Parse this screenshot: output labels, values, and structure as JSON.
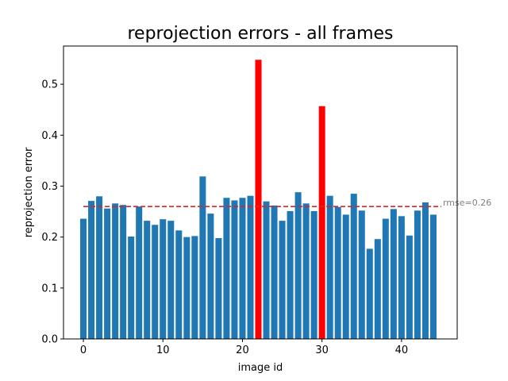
{
  "chart_data": {
    "type": "bar",
    "title": "reprojection errors - all frames",
    "xlabel": "image id",
    "ylabel": "reprojection error",
    "x": [
      0,
      1,
      2,
      3,
      4,
      5,
      6,
      7,
      8,
      9,
      10,
      11,
      12,
      13,
      14,
      15,
      16,
      17,
      18,
      19,
      20,
      21,
      22,
      23,
      24,
      25,
      26,
      27,
      28,
      29,
      30,
      31,
      32,
      33,
      34,
      35,
      36,
      37,
      38,
      39,
      40,
      41,
      42,
      43,
      44
    ],
    "values": [
      0.236,
      0.271,
      0.28,
      0.256,
      0.266,
      0.263,
      0.201,
      0.26,
      0.232,
      0.224,
      0.235,
      0.232,
      0.213,
      0.2,
      0.202,
      0.319,
      0.246,
      0.198,
      0.277,
      0.272,
      0.277,
      0.281,
      0.548,
      0.27,
      0.262,
      0.232,
      0.251,
      0.288,
      0.266,
      0.251,
      0.457,
      0.281,
      0.259,
      0.244,
      0.285,
      0.252,
      0.177,
      0.196,
      0.236,
      0.255,
      0.241,
      0.203,
      0.252,
      0.268,
      0.244
    ],
    "highlighted": [
      22,
      30
    ],
    "colors": {
      "bar": "#1f77b4",
      "highlight": "#ff0000",
      "reference_line": "#d62728",
      "annotation": "#808080"
    },
    "reference_line": {
      "value": 0.26,
      "label": "rmse=0.26",
      "style": "dashed"
    },
    "xlim": [
      -2.5,
      47
    ],
    "ylim": [
      0,
      0.575
    ],
    "xticks": [
      0,
      10,
      20,
      30,
      40
    ],
    "xtick_labels": [
      "0",
      "10",
      "20",
      "30",
      "40"
    ],
    "yticks": [
      0.0,
      0.1,
      0.2,
      0.3,
      0.4,
      0.5
    ],
    "ytick_labels": [
      "0.0",
      "0.1",
      "0.2",
      "0.3",
      "0.4",
      "0.5"
    ],
    "grid": false,
    "legend": "none"
  }
}
